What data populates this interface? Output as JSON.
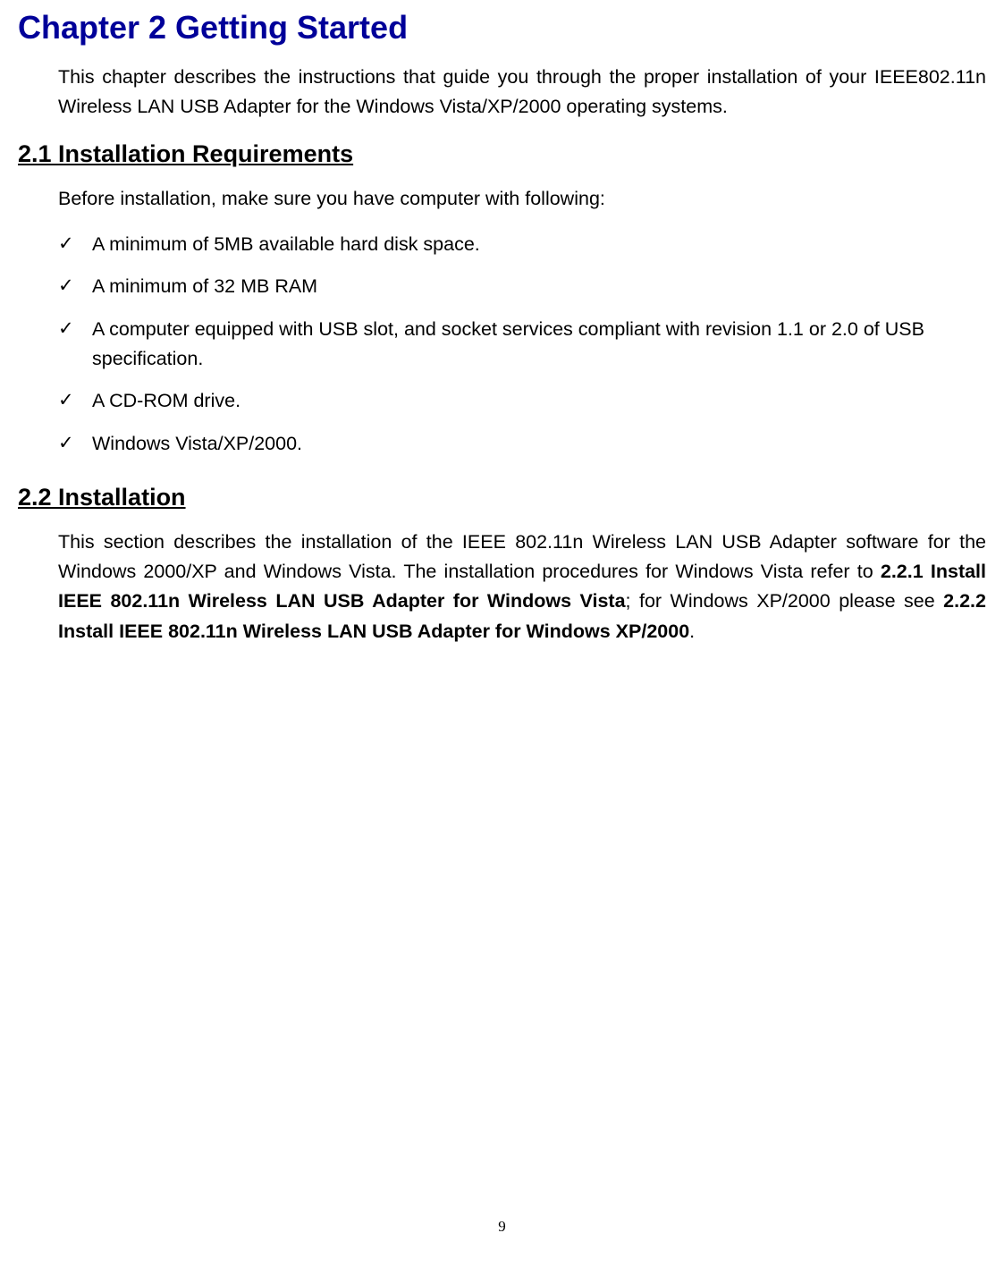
{
  "chapter": {
    "title": "Chapter 2   Getting Started",
    "intro": "This chapter describes the instructions that guide you through the proper installation of your IEEE802.11n Wireless LAN USB Adapter for the Windows Vista/XP/2000 operating systems."
  },
  "section1": {
    "title": "2.1 Installation Requirements",
    "intro": "Before installation, make sure you have computer with following:",
    "items": [
      "A minimum of 5MB available hard disk space.",
      "A minimum of 32 MB RAM",
      "A computer equipped with USB slot, and socket services compliant with revision 1.1 or 2.0 of USB specification.",
      "A CD-ROM drive.",
      "Windows Vista/XP/2000."
    ]
  },
  "section2": {
    "title": "2.2 Installation",
    "body_part1": "This section describes the installation of the IEEE 802.11n Wireless LAN USB Adapter software for the Windows 2000/XP and Windows Vista. The installation procedures for Windows Vista refer to ",
    "bold1": "2.2.1 Install IEEE 802.11n Wireless LAN USB Adapter for Windows Vista",
    "body_part2": "; for Windows XP/2000 please see ",
    "bold2": "2.2.2 Install IEEE 802.11n Wireless LAN USB Adapter for Windows XP/2000",
    "body_part3": "."
  },
  "page_number": "9",
  "colors": {
    "chapter_title": "#000099",
    "text": "#000000",
    "background": "#ffffff"
  },
  "typography": {
    "chapter_title_fontsize": 36,
    "section_title_fontsize": 27,
    "body_fontsize": 21.5,
    "page_number_fontsize": 17,
    "body_font_family": "Arial",
    "page_number_font_family": "Times New Roman"
  }
}
